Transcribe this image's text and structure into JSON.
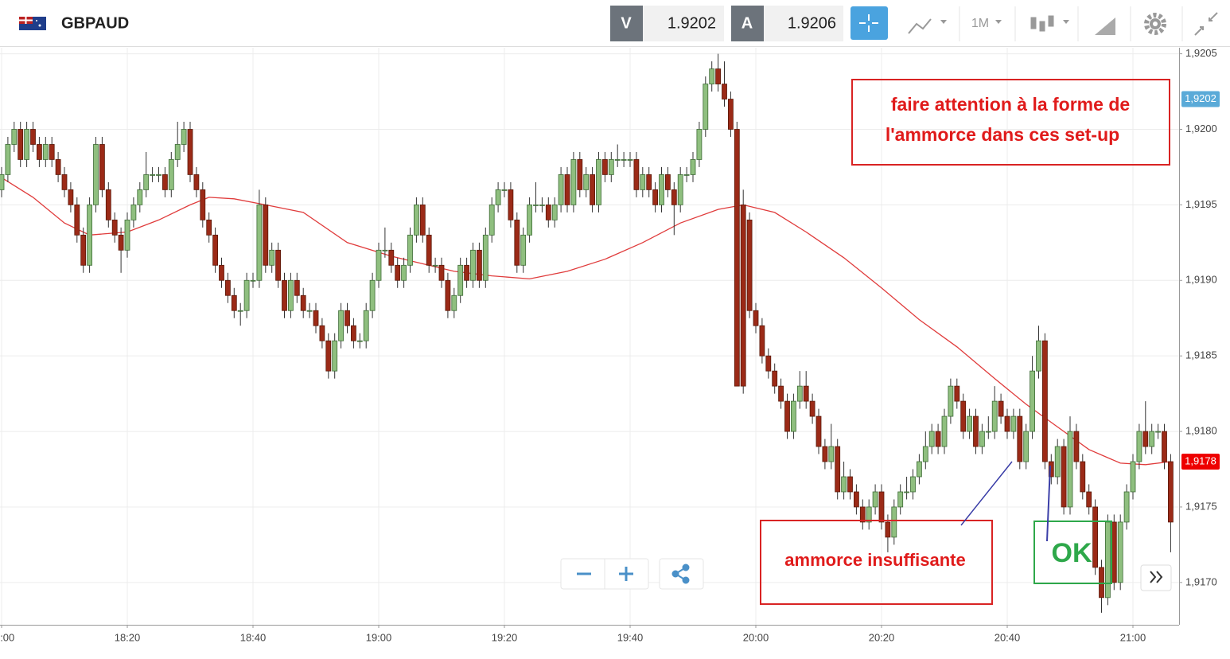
{
  "header": {
    "symbol": "GBPAUD",
    "bid_label": "V",
    "bid": 1.9202,
    "ask_label": "A",
    "ask": 1.9206,
    "timeframe": "1M"
  },
  "chart_data": {
    "type": "candlestick",
    "categories": [
      "18:00",
      "18:01",
      "18:02",
      "18:03",
      "18:04",
      "18:05",
      "18:06",
      "18:07",
      "18:08",
      "18:09",
      "18:10",
      "18:11",
      "18:12",
      "18:13",
      "18:14",
      "18:15",
      "18:16",
      "18:17",
      "18:18",
      "18:19",
      "18:20",
      "18:21",
      "18:22",
      "18:23",
      "18:24",
      "18:25",
      "18:26",
      "18:27",
      "18:28",
      "18:29",
      "18:30",
      "18:31",
      "18:32",
      "18:33",
      "18:34",
      "18:35",
      "18:36",
      "18:37",
      "18:38",
      "18:39",
      "18:40",
      "18:41",
      "18:42",
      "18:43",
      "18:44",
      "18:45",
      "18:46",
      "18:47",
      "18:48",
      "18:49",
      "18:50",
      "18:51",
      "18:52",
      "18:53",
      "18:54",
      "18:55",
      "18:56",
      "18:57",
      "18:58",
      "18:59",
      "19:00",
      "19:01",
      "19:02",
      "19:03",
      "19:04",
      "19:05",
      "19:06",
      "19:07",
      "19:08",
      "19:09",
      "19:10",
      "19:11",
      "19:12",
      "19:13",
      "19:14",
      "19:15",
      "19:16",
      "19:17",
      "19:18",
      "19:19",
      "19:20",
      "19:21",
      "19:22",
      "19:23",
      "19:24",
      "19:25",
      "19:26",
      "19:27",
      "19:28",
      "19:29",
      "19:30",
      "19:31",
      "19:32",
      "19:33",
      "19:34",
      "19:35",
      "19:36",
      "19:37",
      "19:38",
      "19:39",
      "19:40",
      "19:41",
      "19:42",
      "19:43",
      "19:44",
      "19:45",
      "19:46",
      "19:47",
      "19:48",
      "19:49",
      "19:50",
      "19:51",
      "19:52",
      "19:53",
      "19:54",
      "19:55",
      "19:56",
      "19:57",
      "19:58",
      "19:59",
      "20:00",
      "20:01",
      "20:02",
      "20:03",
      "20:04",
      "20:05",
      "20:06",
      "20:07",
      "20:08",
      "20:09",
      "20:10",
      "20:11",
      "20:12",
      "20:13",
      "20:14",
      "20:15",
      "20:16",
      "20:17",
      "20:18",
      "20:19",
      "20:20",
      "20:21",
      "20:22",
      "20:23",
      "20:24",
      "20:25",
      "20:26",
      "20:27",
      "20:28",
      "20:29",
      "20:30",
      "20:31",
      "20:32",
      "20:33",
      "20:34",
      "20:35",
      "20:36",
      "20:37",
      "20:38",
      "20:39",
      "20:40",
      "20:41",
      "20:42",
      "20:43",
      "20:44",
      "20:45",
      "20:46",
      "20:47",
      "20:48",
      "20:49",
      "20:50",
      "20:51",
      "20:52",
      "20:53",
      "20:54",
      "20:55",
      "20:56",
      "20:57",
      "20:58",
      "20:59",
      "21:00",
      "21:01",
      "21:02",
      "21:03",
      "21:04",
      "21:05",
      "21:06"
    ],
    "open": [
      1.9196,
      1.9197,
      1.9199,
      1.92,
      1.9198,
      1.92,
      1.9199,
      1.9198,
      1.9199,
      1.9198,
      1.9197,
      1.9196,
      1.9195,
      1.9193,
      1.9191,
      1.9195,
      1.9199,
      1.9196,
      1.9194,
      1.9193,
      1.9192,
      1.9194,
      1.9195,
      1.9196,
      1.9197,
      1.9197,
      1.9197,
      1.9196,
      1.9198,
      1.9199,
      1.92,
      1.9197,
      1.9196,
      1.9194,
      1.9193,
      1.9191,
      1.919,
      1.9189,
      1.9188,
      1.9188,
      1.919,
      1.919,
      1.9195,
      1.9191,
      1.9192,
      1.919,
      1.9188,
      1.919,
      1.9189,
      1.9188,
      1.9188,
      1.9187,
      1.9186,
      1.9184,
      1.9186,
      1.9188,
      1.9187,
      1.9186,
      1.9186,
      1.9188,
      1.919,
      1.9192,
      1.9192,
      1.9191,
      1.919,
      1.9191,
      1.9193,
      1.9195,
      1.9193,
      1.9191,
      1.9191,
      1.919,
      1.9188,
      1.9189,
      1.9191,
      1.919,
      1.9192,
      1.919,
      1.9193,
      1.9195,
      1.9196,
      1.9196,
      1.9194,
      1.9191,
      1.9193,
      1.9195,
      1.9195,
      1.9195,
      1.9194,
      1.9195,
      1.9197,
      1.9195,
      1.9198,
      1.9196,
      1.9197,
      1.9195,
      1.9198,
      1.9197,
      1.9198,
      1.9198,
      1.9198,
      1.9198,
      1.9196,
      1.9197,
      1.9196,
      1.9195,
      1.9197,
      1.9196,
      1.9195,
      1.9197,
      1.9197,
      1.9198,
      1.92,
      1.9203,
      1.9204,
      1.9203,
      1.9202,
      1.92,
      1.9195,
      1.9194,
      1.9188,
      1.9187,
      1.9185,
      1.9184,
      1.9183,
      1.9182,
      1.918,
      1.9182,
      1.9183,
      1.9182,
      1.9181,
      1.9179,
      1.9178,
      1.9179,
      1.9176,
      1.9177,
      1.9176,
      1.9175,
      1.9174,
      1.9175,
      1.9176,
      1.9174,
      1.9173,
      1.9175,
      1.9176,
      1.9176,
      1.9177,
      1.9178,
      1.9179,
      1.918,
      1.9179,
      1.9181,
      1.9183,
      1.9182,
      1.918,
      1.9181,
      1.9179,
      1.918,
      1.918,
      1.9182,
      1.9181,
      1.918,
      1.9181,
      1.9178,
      1.918,
      1.9184,
      1.9186,
      1.9178,
      1.9177,
      1.9179,
      1.9175,
      1.918,
      1.9178,
      1.9176,
      1.9175,
      1.9171,
      1.9169,
      1.9174,
      1.917,
      1.9174,
      1.9176,
      1.9178,
      1.918,
      1.9179,
      1.918,
      1.918,
      1.9178
    ],
    "high": [
      1.91975,
      1.91995,
      1.92005,
      1.92005,
      1.92005,
      1.92005,
      1.91995,
      1.91995,
      1.91995,
      1.91985,
      1.91975,
      1.91965,
      1.91955,
      1.91935,
      1.91955,
      1.91995,
      1.91995,
      1.91965,
      1.91945,
      1.91935,
      1.91945,
      1.91955,
      1.91965,
      1.91985,
      1.91975,
      1.91975,
      1.91975,
      1.91985,
      1.92005,
      1.92005,
      1.92005,
      1.91975,
      1.91965,
      1.91945,
      1.91935,
      1.91915,
      1.91905,
      1.91895,
      1.91885,
      1.91905,
      1.91905,
      1.9196,
      1.91955,
      1.91925,
      1.91925,
      1.91905,
      1.91905,
      1.91905,
      1.91895,
      1.91885,
      1.91885,
      1.91875,
      1.91865,
      1.91865,
      1.91885,
      1.91885,
      1.91875,
      1.91865,
      1.91885,
      1.91905,
      1.91925,
      1.91935,
      1.91925,
      1.91915,
      1.91915,
      1.91935,
      1.91955,
      1.91955,
      1.91935,
      1.91915,
      1.91915,
      1.91905,
      1.91895,
      1.91915,
      1.91915,
      1.91925,
      1.91925,
      1.91935,
      1.91955,
      1.91965,
      1.91965,
      1.91965,
      1.91945,
      1.91935,
      1.91955,
      1.91965,
      1.91955,
      1.91955,
      1.91955,
      1.91975,
      1.91975,
      1.91985,
      1.91985,
      1.91975,
      1.91975,
      1.91985,
      1.91985,
      1.91985,
      1.9199,
      1.91985,
      1.91985,
      1.91985,
      1.91975,
      1.91975,
      1.91965,
      1.91975,
      1.91975,
      1.91965,
      1.91975,
      1.91975,
      1.91985,
      1.92005,
      1.92035,
      1.92045,
      1.9205,
      1.92045,
      1.92025,
      1.92005,
      1.9196,
      1.91945,
      1.91885,
      1.91875,
      1.91855,
      1.91845,
      1.91835,
      1.91825,
      1.91825,
      1.9184,
      1.9184,
      1.91825,
      1.91815,
      1.91795,
      1.91805,
      1.91795,
      1.9178,
      1.91775,
      1.91765,
      1.91755,
      1.91755,
      1.91765,
      1.91765,
      1.91745,
      1.91755,
      1.91765,
      1.9177,
      1.91775,
      1.91785,
      1.918,
      1.91805,
      1.91805,
      1.91815,
      1.91835,
      1.91835,
      1.91825,
      1.91815,
      1.91815,
      1.91805,
      1.9181,
      1.9183,
      1.91825,
      1.91815,
      1.91815,
      1.91815,
      1.91805,
      1.9185,
      1.9187,
      1.91865,
      1.91785,
      1.91795,
      1.91795,
      1.9181,
      1.91805,
      1.91785,
      1.91765,
      1.91755,
      1.91715,
      1.91745,
      1.91745,
      1.91745,
      1.91765,
      1.91785,
      1.91805,
      1.9182,
      1.91805,
      1.91805,
      1.91805,
      1.91785
    ],
    "low": [
      1.91955,
      1.91965,
      1.91985,
      1.91975,
      1.91975,
      1.91985,
      1.91975,
      1.91975,
      1.91975,
      1.91965,
      1.91955,
      1.91945,
      1.91925,
      1.91905,
      1.91905,
      1.91945,
      1.91955,
      1.91935,
      1.91925,
      1.91905,
      1.91915,
      1.91935,
      1.91945,
      1.91955,
      1.91965,
      1.91965,
      1.91955,
      1.91955,
      1.91975,
      1.91985,
      1.91965,
      1.91955,
      1.91935,
      1.91925,
      1.91905,
      1.91895,
      1.91885,
      1.91875,
      1.9187,
      1.91875,
      1.91895,
      1.91895,
      1.91905,
      1.91905,
      1.91895,
      1.91875,
      1.91875,
      1.91885,
      1.91875,
      1.91875,
      1.91865,
      1.91855,
      1.91835,
      1.91835,
      1.91855,
      1.91865,
      1.91855,
      1.91855,
      1.91855,
      1.91875,
      1.91895,
      1.91915,
      1.91905,
      1.91895,
      1.91895,
      1.91905,
      1.91925,
      1.91925,
      1.91905,
      1.91905,
      1.91895,
      1.91875,
      1.91875,
      1.91885,
      1.91895,
      1.91895,
      1.91895,
      1.91895,
      1.91925,
      1.91945,
      1.91955,
      1.91935,
      1.91905,
      1.91905,
      1.91925,
      1.91945,
      1.91945,
      1.91935,
      1.91935,
      1.91945,
      1.91945,
      1.91945,
      1.91955,
      1.91955,
      1.91945,
      1.91945,
      1.91965,
      1.91965,
      1.91975,
      1.91975,
      1.91975,
      1.91955,
      1.91955,
      1.91955,
      1.91945,
      1.91945,
      1.91955,
      1.9193,
      1.91945,
      1.91965,
      1.91965,
      1.91975,
      1.91995,
      1.92025,
      1.92025,
      1.92015,
      1.91995,
      1.9183,
      1.91825,
      1.91875,
      1.91865,
      1.91845,
      1.91835,
      1.91825,
      1.91815,
      1.91795,
      1.91795,
      1.91815,
      1.91815,
      1.91805,
      1.91785,
      1.91775,
      1.91775,
      1.91755,
      1.91755,
      1.91755,
      1.91745,
      1.91735,
      1.91735,
      1.91745,
      1.91735,
      1.9172,
      1.91725,
      1.91745,
      1.91755,
      1.91755,
      1.91765,
      1.91775,
      1.91785,
      1.91785,
      1.91785,
      1.91805,
      1.91815,
      1.91795,
      1.91795,
      1.91785,
      1.91785,
      1.91795,
      1.91795,
      1.91805,
      1.91795,
      1.91795,
      1.91775,
      1.91775,
      1.91795,
      1.91835,
      1.91775,
      1.91765,
      1.91765,
      1.91745,
      1.91745,
      1.91775,
      1.91755,
      1.91745,
      1.91705,
      1.9168,
      1.91685,
      1.91695,
      1.91695,
      1.91735,
      1.91755,
      1.91775,
      1.91785,
      1.91785,
      1.91795,
      1.91775,
      1.9172
    ],
    "close": [
      1.9197,
      1.9199,
      1.92,
      1.9198,
      1.92,
      1.9199,
      1.9198,
      1.9199,
      1.9198,
      1.9197,
      1.9196,
      1.9195,
      1.9193,
      1.9191,
      1.9195,
      1.9199,
      1.9196,
      1.9194,
      1.9193,
      1.9192,
      1.9194,
      1.9195,
      1.9196,
      1.9197,
      1.9197,
      1.9197,
      1.9196,
      1.9198,
      1.9199,
      1.92,
      1.9197,
      1.9196,
      1.9194,
      1.9193,
      1.9191,
      1.919,
      1.9189,
      1.9188,
      1.9188,
      1.919,
      1.919,
      1.9195,
      1.9191,
      1.9192,
      1.919,
      1.9188,
      1.919,
      1.9189,
      1.9188,
      1.9188,
      1.9187,
      1.9186,
      1.9184,
      1.9186,
      1.9188,
      1.9187,
      1.9186,
      1.9186,
      1.9188,
      1.919,
      1.9192,
      1.9192,
      1.9191,
      1.919,
      1.9191,
      1.9193,
      1.9195,
      1.9193,
      1.9191,
      1.9191,
      1.919,
      1.9188,
      1.9189,
      1.9191,
      1.919,
      1.9192,
      1.919,
      1.9193,
      1.9195,
      1.9196,
      1.9196,
      1.9194,
      1.9191,
      1.9193,
      1.9195,
      1.9195,
      1.9195,
      1.9194,
      1.9195,
      1.9197,
      1.9195,
      1.9198,
      1.9196,
      1.9197,
      1.9195,
      1.9198,
      1.9197,
      1.9198,
      1.9198,
      1.9198,
      1.9198,
      1.9196,
      1.9197,
      1.9196,
      1.9195,
      1.9197,
      1.9196,
      1.9195,
      1.9197,
      1.9197,
      1.9198,
      1.92,
      1.9203,
      1.9204,
      1.9203,
      1.9202,
      1.92,
      1.9183,
      1.9183,
      1.9188,
      1.9187,
      1.9185,
      1.9184,
      1.9183,
      1.9182,
      1.918,
      1.9182,
      1.9183,
      1.9182,
      1.9181,
      1.9179,
      1.9178,
      1.9179,
      1.9176,
      1.9177,
      1.9176,
      1.9175,
      1.9174,
      1.9175,
      1.9176,
      1.9174,
      1.9173,
      1.9175,
      1.9176,
      1.9176,
      1.9177,
      1.9178,
      1.9179,
      1.918,
      1.9179,
      1.9181,
      1.9183,
      1.9182,
      1.918,
      1.9181,
      1.9179,
      1.918,
      1.918,
      1.9182,
      1.9181,
      1.918,
      1.9181,
      1.9178,
      1.918,
      1.9184,
      1.9186,
      1.9178,
      1.9177,
      1.9179,
      1.9175,
      1.918,
      1.9178,
      1.9176,
      1.9175,
      1.9171,
      1.9169,
      1.9174,
      1.917,
      1.9174,
      1.9176,
      1.9178,
      1.918,
      1.9179,
      1.918,
      1.918,
      1.9178,
      1.9174
    ],
    "up_color": "#8fbf7f",
    "down_color": "#9b2a17",
    "ma": {
      "color": "#e03c3c",
      "x": [
        "18:00",
        "18:05",
        "18:10",
        "18:14",
        "18:20",
        "18:25",
        "18:30",
        "18:33",
        "18:37",
        "18:42",
        "18:48",
        "18:55",
        "19:02",
        "19:06",
        "19:12",
        "19:18",
        "19:24",
        "19:30",
        "19:36",
        "19:42",
        "19:48",
        "19:54",
        "19:58",
        "20:03",
        "20:08",
        "20:14",
        "20:20",
        "20:26",
        "20:32",
        "20:38",
        "20:43",
        "20:48",
        "20:53",
        "20:58",
        "21:02",
        "21:06"
      ],
      "values": [
        1.91968,
        1.91955,
        1.91938,
        1.9193,
        1.91932,
        1.9194,
        1.9195,
        1.91955,
        1.91954,
        1.9195,
        1.91945,
        1.91925,
        1.91916,
        1.91912,
        1.91906,
        1.91903,
        1.91901,
        1.91906,
        1.91914,
        1.91925,
        1.91938,
        1.91947,
        1.9195,
        1.91945,
        1.91932,
        1.91915,
        1.91895,
        1.91874,
        1.91856,
        1.91835,
        1.91818,
        1.91803,
        1.91788,
        1.91779,
        1.91778,
        1.9178
      ]
    },
    "xticks": [
      "18:00",
      "18:20",
      "18:40",
      "19:00",
      "19:20",
      "19:40",
      "20:00",
      "20:20",
      "20:40",
      "21:00"
    ],
    "ylim": [
      1.91672,
      1.92054
    ],
    "yticks": [
      {
        "value": 1.917,
        "label": "1,9170"
      },
      {
        "value": 1.9175,
        "label": "1,9175"
      },
      {
        "value": 1.918,
        "label": "1,9180"
      },
      {
        "value": 1.9185,
        "label": "1,9185"
      },
      {
        "value": 1.919,
        "label": "1,9190"
      },
      {
        "value": 1.9195,
        "label": "1,9195"
      },
      {
        "value": 1.92,
        "label": "1,9200"
      },
      {
        "value": 1.9205,
        "label": "1,9205"
      }
    ],
    "grid": true,
    "price_markers": [
      {
        "value": 1.9202,
        "label": "1,9202",
        "color": "#5aaad8"
      },
      {
        "value": 1.9178,
        "label": "1,9178",
        "color": "#ee0000"
      }
    ],
    "annotations": {
      "note_lines": [
        "faire attention à la forme de",
        "l'ammorce dans ces set-up"
      ],
      "weak": "ammorce insuffisante",
      "ok": "OK"
    }
  }
}
